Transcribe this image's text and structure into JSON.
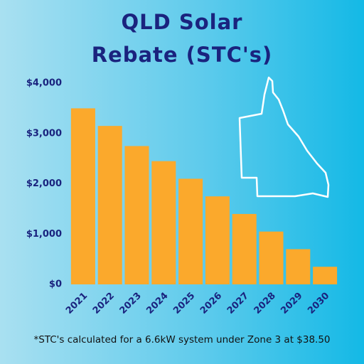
{
  "chart_data": {
    "type": "bar",
    "title": "QLD Solar Rebate (STC's)",
    "categories": [
      "2021",
      "2022",
      "2023",
      "2024",
      "2025",
      "2026",
      "2027",
      "2028",
      "2029",
      "2030"
    ],
    "values": [
      3500,
      3150,
      2750,
      2450,
      2100,
      1750,
      1400,
      1050,
      700,
      350
    ],
    "color": "#fba92c",
    "ylim": [
      0,
      4000
    ],
    "yticks": [
      {
        "value": 0,
        "label": "$0"
      },
      {
        "value": 1000,
        "label": "$1,000"
      },
      {
        "value": 2000,
        "label": "$2,000"
      },
      {
        "value": 3000,
        "label": "$3,000"
      },
      {
        "value": 4000,
        "label": "$4,000"
      }
    ],
    "footnote": "*STC's calculated for a 6.6kW system under Zone 3 at $38.50"
  }
}
